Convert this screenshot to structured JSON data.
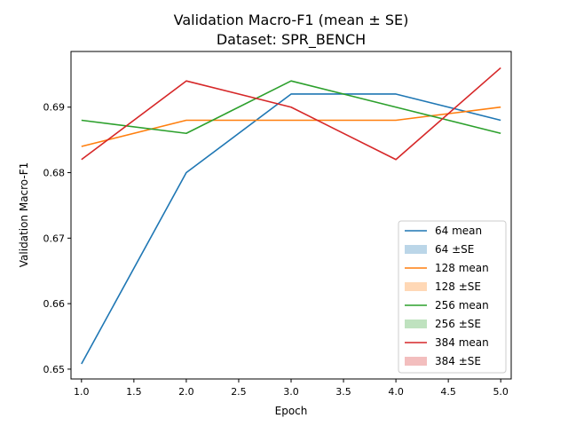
{
  "chart_data": {
    "type": "line",
    "title_line1": "Validation Macro-F1 (mean ± SE)",
    "title_line2": "Dataset: SPR_BENCH",
    "xlabel": "Epoch",
    "ylabel": "Validation Macro-F1",
    "xlim": [
      0.9,
      5.1
    ],
    "ylim": [
      0.6485,
      0.6985
    ],
    "xticks": [
      1.0,
      1.5,
      2.0,
      2.5,
      3.0,
      3.5,
      4.0,
      4.5,
      5.0
    ],
    "xtick_labels": [
      "1.0",
      "1.5",
      "2.0",
      "2.5",
      "3.0",
      "3.5",
      "4.0",
      "4.5",
      "5.0"
    ],
    "yticks": [
      0.65,
      0.66,
      0.67,
      0.68,
      0.69
    ],
    "ytick_labels": [
      "0.65",
      "0.66",
      "0.67",
      "0.68",
      "0.69"
    ],
    "grid": false,
    "legend_position": "lower-right",
    "x": [
      1,
      2,
      3,
      4,
      5
    ],
    "series": [
      {
        "name": "64 mean",
        "se_label": "64 ±SE",
        "color": "#1f77b4",
        "values": [
          0.6508,
          0.68,
          0.692,
          0.692,
          0.688
        ]
      },
      {
        "name": "128 mean",
        "se_label": "128 ±SE",
        "color": "#ff7f0e",
        "values": [
          0.684,
          0.688,
          0.688,
          0.688,
          0.69
        ]
      },
      {
        "name": "256 mean",
        "se_label": "256 ±SE",
        "color": "#2ca02c",
        "values": [
          0.688,
          0.686,
          0.694,
          0.69,
          0.686
        ]
      },
      {
        "name": "384 mean",
        "se_label": "384 ±SE",
        "color": "#d62728",
        "values": [
          0.682,
          0.694,
          0.69,
          0.682,
          0.696
        ]
      }
    ]
  }
}
